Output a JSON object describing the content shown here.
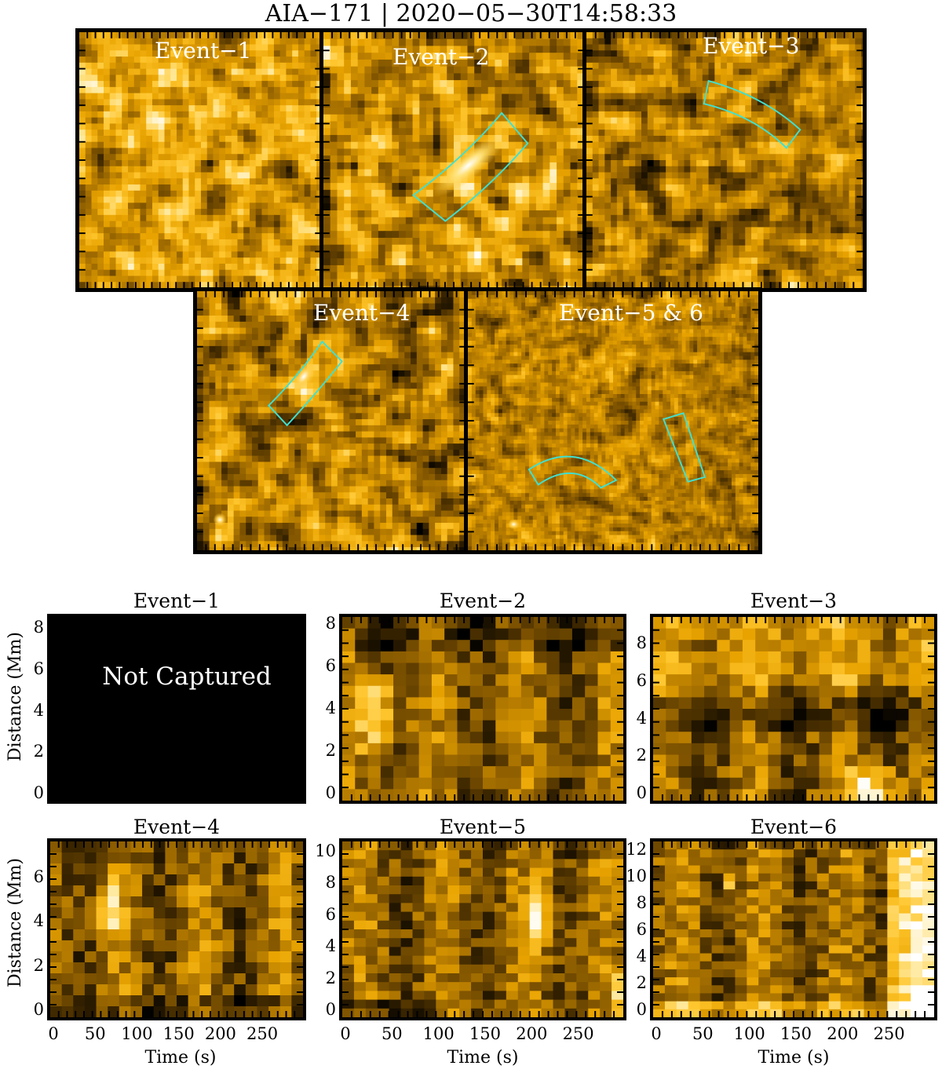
{
  "figure_title": "AIA−171 | 2020−05−30T14:58:33",
  "image_panels": [
    {
      "id": "e1",
      "label": "Event−1",
      "seed": 11,
      "brightness": 0.55,
      "contrast": 0.9
    },
    {
      "id": "e2",
      "label": "Event−2",
      "seed": 23,
      "brightness": 0.5,
      "contrast": 1.0
    },
    {
      "id": "e3",
      "label": "Event−3",
      "seed": 37,
      "brightness": 0.42,
      "contrast": 0.9
    },
    {
      "id": "e4",
      "label": "Event−4",
      "seed": 41,
      "brightness": 0.42,
      "contrast": 0.9
    },
    {
      "id": "e56",
      "label": "Event−5 & 6",
      "seed": 53,
      "brightness": 0.45,
      "contrast": 0.6
    }
  ],
  "colors": {
    "box_outline": "#40e0d0",
    "colormap": [
      "#000000",
      "#3a2500",
      "#7a5000",
      "#b57b00",
      "#e8a300",
      "#ffc62e",
      "#ffe89a",
      "#ffffff"
    ]
  },
  "time_distance": {
    "x_axis_label": "Time (s)",
    "y_axis_label": "Distance (Mm)",
    "x_ticks": [
      "0",
      "50",
      "100",
      "150",
      "200",
      "250"
    ],
    "not_captured_text": "Not Captured",
    "panels": [
      {
        "id": "td1",
        "title": "Event−1",
        "y_ticks": [
          "0",
          "2",
          "4",
          "6",
          "8"
        ],
        "empty": true
      },
      {
        "id": "td2",
        "title": "Event−2",
        "y_ticks": [
          "0",
          "2",
          "4",
          "6",
          "8"
        ],
        "seed": 71
      },
      {
        "id": "td3",
        "title": "Event−3",
        "y_ticks": [
          "0",
          "2",
          "4",
          "6",
          "8"
        ],
        "seed": 83
      },
      {
        "id": "td4",
        "title": "Event−4",
        "y_ticks": [
          "0",
          "2",
          "4",
          "6"
        ],
        "seed": 97
      },
      {
        "id": "td5",
        "title": "Event−5",
        "y_ticks": [
          "0",
          "2",
          "4",
          "6",
          "8",
          "10"
        ],
        "seed": 101
      },
      {
        "id": "td6",
        "title": "Event−6",
        "y_ticks": [
          "0",
          "2",
          "4",
          "6",
          "8",
          "10",
          "12"
        ],
        "seed": 113
      }
    ]
  }
}
